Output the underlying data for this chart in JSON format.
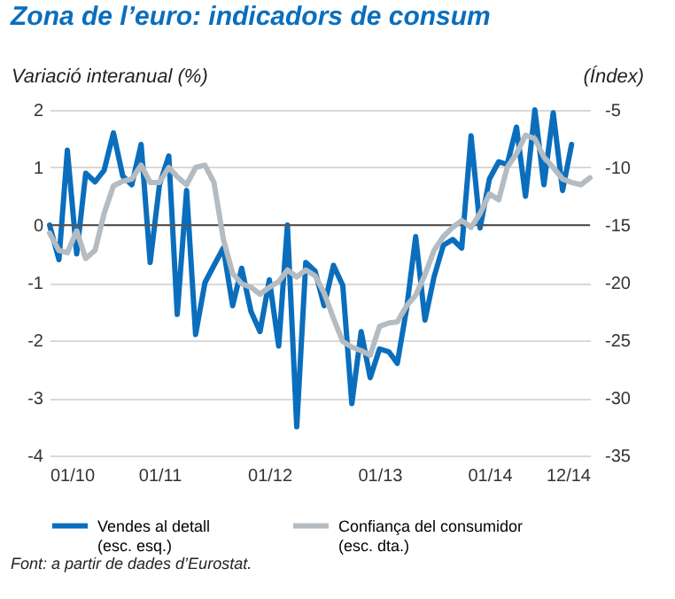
{
  "chart_data": {
    "type": "line",
    "title": "Zona de l’euro: indicadors de consum",
    "ylabel": "Variació interanual (%)",
    "y2label": "(Índex)",
    "x": [
      "2010-01",
      "2010-02",
      "2010-03",
      "2010-04",
      "2010-05",
      "2010-06",
      "2010-07",
      "2010-08",
      "2010-09",
      "2010-10",
      "2010-11",
      "2010-12",
      "2011-01",
      "2011-02",
      "2011-03",
      "2011-04",
      "2011-05",
      "2011-06",
      "2011-07",
      "2011-08",
      "2011-09",
      "2011-10",
      "2011-11",
      "2011-12",
      "2012-01",
      "2012-02",
      "2012-03",
      "2012-04",
      "2012-05",
      "2012-06",
      "2012-07",
      "2012-08",
      "2012-09",
      "2012-10",
      "2012-11",
      "2012-12",
      "2013-01",
      "2013-02",
      "2013-03",
      "2013-04",
      "2013-05",
      "2013-06",
      "2013-07",
      "2013-08",
      "2013-09",
      "2013-10",
      "2013-11",
      "2013-12",
      "2014-01",
      "2014-02",
      "2014-03",
      "2014-04",
      "2014-05",
      "2014-06",
      "2014-07",
      "2014-08",
      "2014-09",
      "2014-10",
      "2014-11",
      "2014-12"
    ],
    "series": [
      {
        "name": "Vendes al detall (esc. esq.)",
        "color": "#0a6ebd",
        "values": [
          0,
          -0.6,
          1.3,
          -0.5,
          0.9,
          0.75,
          0.95,
          1.6,
          0.85,
          0.7,
          1.4,
          -0.65,
          0.7,
          1.2,
          -1.55,
          0.6,
          -1.9,
          -1.0,
          -0.7,
          -0.4,
          -1.4,
          -0.75,
          -1.5,
          -1.85,
          -0.95,
          -2.1,
          0,
          -3.5,
          -0.65,
          -0.8,
          -1.4,
          -0.7,
          -1.05,
          -3.1,
          -1.85,
          -2.65,
          -2.15,
          -2.2,
          -2.4,
          -1.45,
          -0.2,
          -1.65,
          -0.9,
          -0.35,
          -0.25,
          -0.4,
          1.55,
          -0.05,
          0.8,
          1.1,
          1.05,
          1.7,
          0.5,
          2.0,
          0.7,
          1.95,
          0.6,
          1.4,
          null,
          null
        ]
      },
      {
        "name": "Confiança del consumidor (esc. dta.)",
        "color": "#b4bcc2",
        "axis": "y2",
        "values": [
          -15.7,
          -17.2,
          -17.4,
          -15.5,
          -17.9,
          -17.2,
          -14,
          -11.6,
          -11.2,
          -11,
          -9.8,
          -11.3,
          -11.3,
          -10,
          -10.8,
          -11.5,
          -10,
          -9.8,
          -11.3,
          -16.2,
          -19.2,
          -20.1,
          -20.4,
          -21,
          -20.4,
          -19.9,
          -18.9,
          -19.5,
          -18.9,
          -19.4,
          -20.9,
          -23.1,
          -25.1,
          -25.6,
          -25.9,
          -26.3,
          -23.8,
          -23.5,
          -23.4,
          -22,
          -21.1,
          -19.3,
          -17.2,
          -16,
          -15.2,
          -14.6,
          -15.2,
          -14,
          -12.3,
          -12.8,
          -10,
          -8.8,
          -7.2,
          -7.5,
          -9.1,
          -10,
          -11,
          -11.3,
          -11.5,
          -10.9
        ]
      }
    ],
    "xlim": [
      "2010-01",
      "2014-12"
    ],
    "xticks": [
      {
        "value": "2010-01",
        "label": "01/10"
      },
      {
        "value": "2011-01",
        "label": "01/11"
      },
      {
        "value": "2012-01",
        "label": "01/12"
      },
      {
        "value": "2013-01",
        "label": "01/13"
      },
      {
        "value": "2014-01",
        "label": "01/14"
      },
      {
        "value": "2014-12",
        "label": "12/14"
      }
    ],
    "ylim": [
      -4,
      2
    ],
    "yticks": [
      -4,
      -3,
      -2,
      -1,
      0,
      1,
      2
    ],
    "y2lim": [
      -35,
      -5
    ],
    "y2ticks": [
      -35,
      -30,
      -25,
      -20,
      -15,
      -10,
      -5
    ],
    "ref_lines": [
      {
        "axis": "y",
        "value": 0,
        "color": "#555555"
      }
    ],
    "grid": "y",
    "legend": "bottom",
    "annotations": [
      "Font: a partir de dades d’Eurostat."
    ]
  }
}
